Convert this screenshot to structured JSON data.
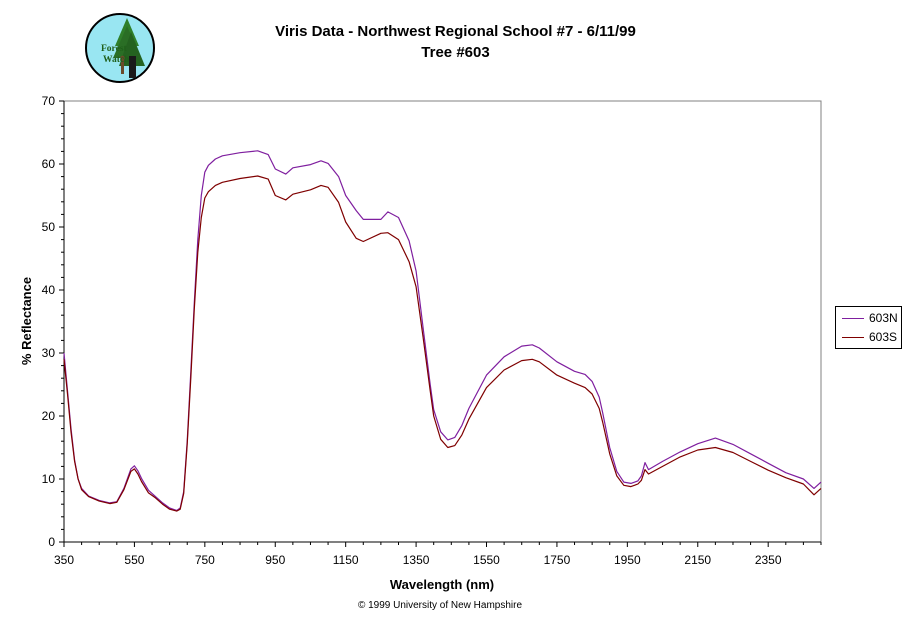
{
  "logo": {
    "text_line1": "Forest",
    "text_line2": "Watch"
  },
  "title_line1": "Viris Data - Northwest Regional School #7 - 6/11/99",
  "title_line2": "Tree #603",
  "copyright": "© 1999 University of New Hampshire",
  "colors": {
    "series_603N": "#7f1f9f",
    "series_603S": "#7f0000",
    "axis": "#000000"
  },
  "chart_data": {
    "type": "line",
    "xlabel": "Wavelength (nm)",
    "ylabel": "% Reflectance",
    "xlim": [
      350,
      2500
    ],
    "ylim": [
      0,
      70
    ],
    "xticks": [
      350,
      550,
      750,
      950,
      1150,
      1350,
      1550,
      1750,
      1950,
      2150,
      2350
    ],
    "yticks": [
      0,
      10,
      20,
      30,
      40,
      50,
      60,
      70
    ],
    "grid": false,
    "legend_position": "right",
    "x": [
      350,
      360,
      370,
      380,
      390,
      400,
      420,
      450,
      480,
      500,
      520,
      540,
      550,
      560,
      570,
      590,
      610,
      630,
      650,
      670,
      680,
      690,
      700,
      710,
      720,
      730,
      740,
      750,
      760,
      780,
      800,
      850,
      900,
      930,
      950,
      980,
      1000,
      1050,
      1080,
      1100,
      1130,
      1150,
      1180,
      1200,
      1250,
      1270,
      1300,
      1330,
      1350,
      1370,
      1390,
      1400,
      1420,
      1440,
      1460,
      1480,
      1500,
      1550,
      1600,
      1650,
      1680,
      1700,
      1750,
      1800,
      1830,
      1850,
      1870,
      1880,
      1900,
      1920,
      1940,
      1960,
      1980,
      1990,
      2000,
      2010,
      2050,
      2100,
      2150,
      2200,
      2250,
      2300,
      2350,
      2400,
      2450,
      2480,
      2500
    ],
    "series": [
      {
        "name": "603N",
        "values": [
          30,
          24,
          18,
          13,
          10,
          8.5,
          7.3,
          6.6,
          6.2,
          6.4,
          8.5,
          11.6,
          12.1,
          11.3,
          10.1,
          8.2,
          7.2,
          6.2,
          5.4,
          5,
          5.4,
          8,
          16,
          27,
          38,
          48,
          55,
          58.7,
          59.8,
          60.8,
          61.3,
          61.8,
          62.1,
          61.5,
          59.2,
          58.4,
          59.4,
          59.9,
          60.5,
          60.1,
          58,
          55,
          52.6,
          51.2,
          51.2,
          52.4,
          51.5,
          47.8,
          43,
          34,
          25,
          21,
          17.5,
          16.2,
          16.6,
          18.5,
          21.2,
          26.5,
          29.4,
          31.1,
          31.3,
          30.8,
          28.6,
          27.1,
          26.6,
          25.5,
          23,
          20.5,
          15,
          11.2,
          9.5,
          9.3,
          9.7,
          10.5,
          12.6,
          11.5,
          12.8,
          14.3,
          15.6,
          16.5,
          15.5,
          14,
          12.5,
          11,
          10,
          8.5,
          9.5
        ]
      },
      {
        "name": "603S",
        "values": [
          29,
          23.5,
          17.5,
          12.8,
          10,
          8.3,
          7.2,
          6.5,
          6.1,
          6.3,
          8.3,
          11.2,
          11.6,
          10.8,
          9.6,
          7.8,
          7,
          6,
          5.2,
          4.9,
          5.2,
          7.7,
          15.5,
          26,
          37,
          46,
          51.5,
          54.6,
          55.6,
          56.6,
          57.1,
          57.7,
          58.1,
          57.6,
          55,
          54.3,
          55.2,
          55.9,
          56.6,
          56.3,
          53.9,
          50.8,
          48.2,
          47.7,
          49,
          49.1,
          48,
          44.5,
          40.5,
          32.5,
          24,
          20,
          16.3,
          15,
          15.3,
          17,
          19.5,
          24.5,
          27.3,
          28.8,
          29,
          28.6,
          26.5,
          25.2,
          24.5,
          23.5,
          21.2,
          19,
          14,
          10.5,
          9,
          8.8,
          9.2,
          9.8,
          11.5,
          10.8,
          12,
          13.5,
          14.6,
          15,
          14.2,
          12.8,
          11.4,
          10.2,
          9.2,
          7.5,
          8.5
        ]
      }
    ]
  }
}
